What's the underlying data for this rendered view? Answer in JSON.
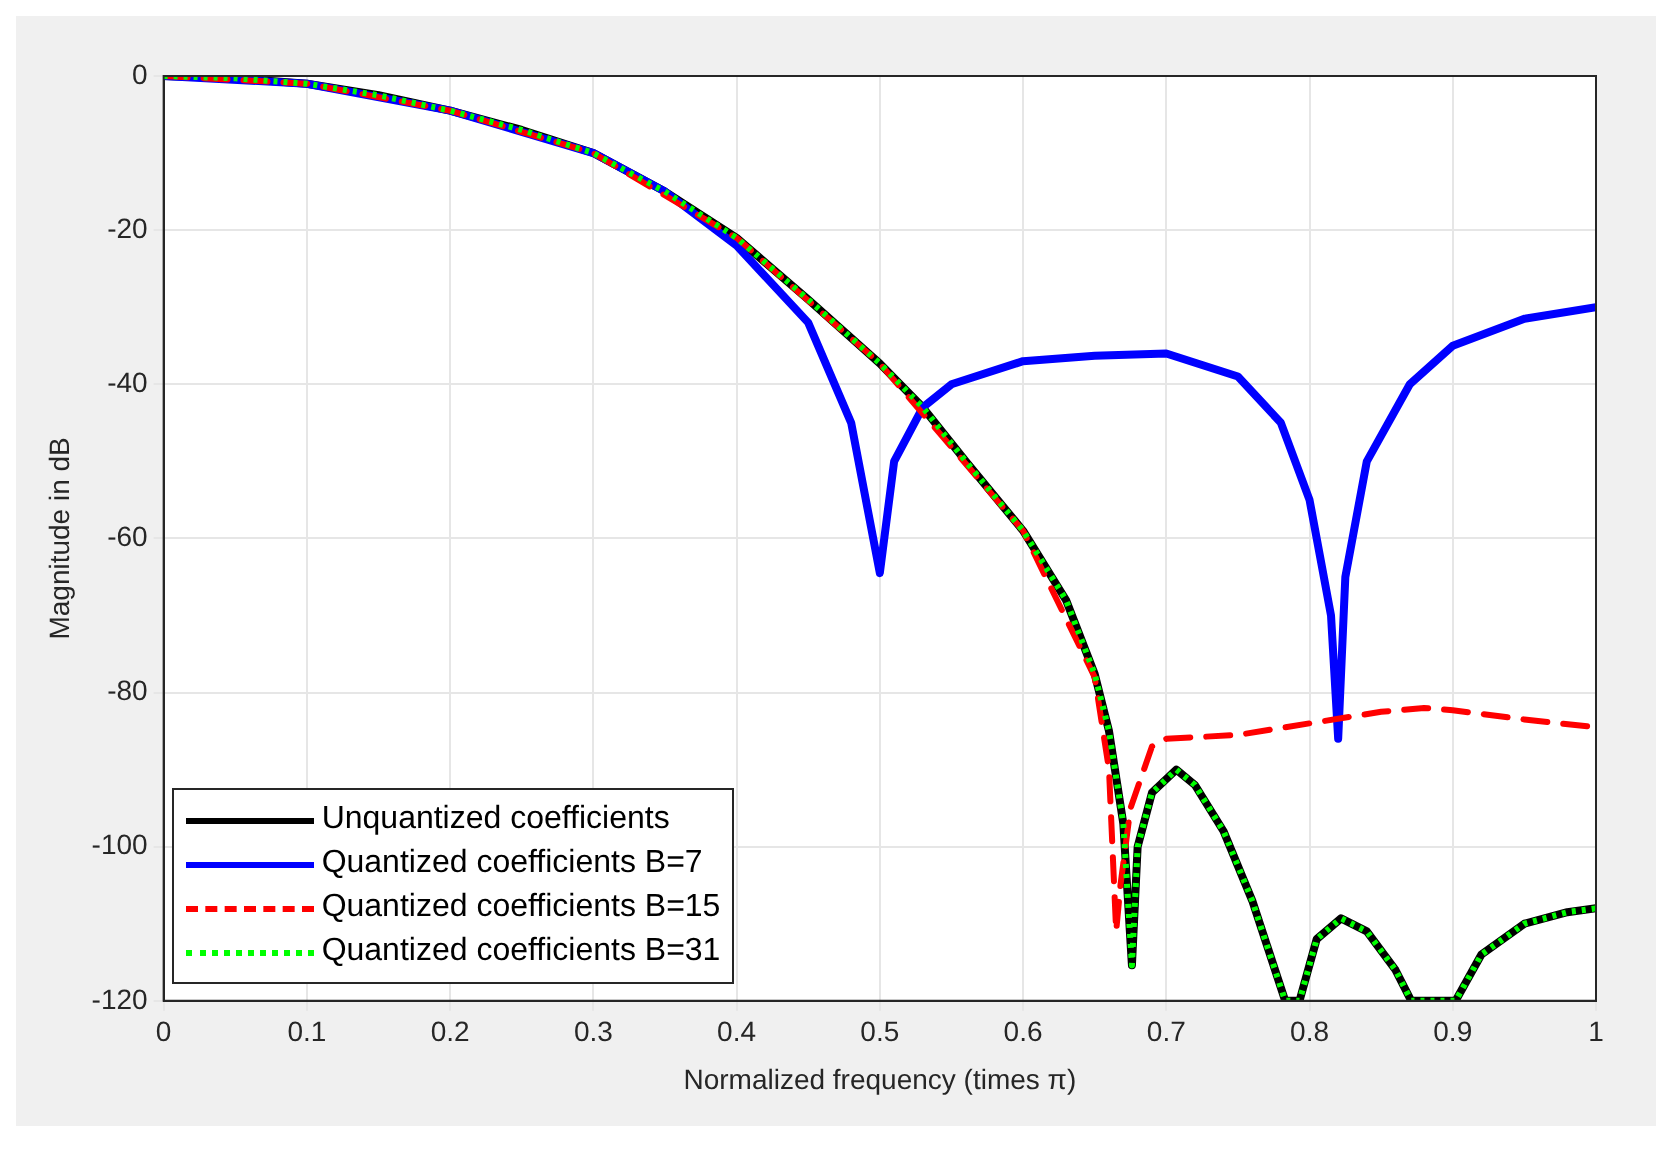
{
  "chart_data": {
    "type": "line",
    "xlabel": "Normalized frequency (times π)",
    "ylabel": "Magnitude in dB",
    "xlim": [
      0,
      1
    ],
    "ylim": [
      -120,
      0
    ],
    "xticks": [
      0,
      0.1,
      0.2,
      0.3,
      0.4,
      0.5,
      0.6,
      0.7,
      0.8,
      0.9,
      1
    ],
    "yticks": [
      -120,
      -100,
      -80,
      -60,
      -40,
      -20,
      0
    ],
    "grid": true,
    "legend": "bottom left",
    "marker": "none",
    "series": [
      {
        "name": "Unquantized coefficients",
        "color": "#000000",
        "line_style": "solid",
        "x": [
          0,
          0.05,
          0.1,
          0.15,
          0.2,
          0.25,
          0.3,
          0.35,
          0.4,
          0.45,
          0.5,
          0.53,
          0.56,
          0.6,
          0.63,
          0.65,
          0.66,
          0.67,
          0.676,
          0.68,
          0.69,
          0.707,
          0.72,
          0.74,
          0.76,
          0.783,
          0.793,
          0.805,
          0.822,
          0.84,
          0.86,
          0.871,
          0.902,
          0.92,
          0.95,
          0.98,
          1
        ],
        "values": [
          0,
          -0.3,
          -1,
          -2.5,
          -4.5,
          -7,
          -10,
          -15,
          -21,
          -29,
          -37.3,
          -43,
          -50,
          -59,
          -68,
          -77.6,
          -85,
          -97,
          -115.4,
          -100,
          -93,
          -90,
          -92,
          -98,
          -107,
          -120,
          -120,
          -112,
          -109.3,
          -111,
          -116,
          -120,
          -120,
          -114,
          -110,
          -108.5,
          -108
        ]
      },
      {
        "name": "Quantized coefficients B=7",
        "color": "#0000ff",
        "line_style": "solid",
        "x": [
          0,
          0.1,
          0.2,
          0.3,
          0.35,
          0.4,
          0.45,
          0.48,
          0.5,
          0.51,
          0.53,
          0.55,
          0.6,
          0.65,
          0.7,
          0.75,
          0.78,
          0.8,
          0.815,
          0.82,
          0.825,
          0.84,
          0.87,
          0.9,
          0.95,
          1
        ],
        "values": [
          0,
          -1,
          -4.5,
          -10,
          -15,
          -22,
          -32,
          -45,
          -64.5,
          -50,
          -43,
          -40,
          -37,
          -36.3,
          -36,
          -39,
          -45,
          -55,
          -70,
          -86,
          -65,
          -50,
          -40,
          -35,
          -31.5,
          -30
        ]
      },
      {
        "name": "Quantized coefficients B=15",
        "color": "#ff0000",
        "line_style": "dashed",
        "x": [
          0,
          0.1,
          0.2,
          0.3,
          0.4,
          0.5,
          0.6,
          0.65,
          0.66,
          0.665,
          0.668,
          0.675,
          0.69,
          0.7,
          0.75,
          0.8,
          0.85,
          0.88,
          0.9,
          0.95,
          1
        ],
        "values": [
          0,
          -1,
          -4.5,
          -10,
          -21,
          -37.3,
          -59,
          -78,
          -90,
          -111,
          -105,
          -95,
          -87,
          -86,
          -85.5,
          -84,
          -82.5,
          -82,
          -82.3,
          -83.5,
          -84.5
        ]
      },
      {
        "name": "Quantized coefficients B=31",
        "color": "#00ff00",
        "line_style": "dotted",
        "x": [
          0,
          0.05,
          0.1,
          0.15,
          0.2,
          0.25,
          0.3,
          0.35,
          0.4,
          0.45,
          0.5,
          0.53,
          0.56,
          0.6,
          0.63,
          0.65,
          0.66,
          0.67,
          0.676,
          0.68,
          0.69,
          0.707,
          0.72,
          0.74,
          0.76,
          0.783,
          0.793,
          0.805,
          0.822,
          0.84,
          0.86,
          0.871,
          0.902,
          0.92,
          0.95,
          0.98,
          1
        ],
        "values": [
          0,
          -0.3,
          -1,
          -2.5,
          -4.5,
          -7,
          -10,
          -15,
          -21,
          -29,
          -37.3,
          -43,
          -50,
          -59,
          -68,
          -77.6,
          -85,
          -97,
          -115.4,
          -100,
          -93,
          -90,
          -92,
          -98,
          -107,
          -120,
          -120,
          -112,
          -109.3,
          -111,
          -116,
          -120,
          -120,
          -114,
          -110,
          -108.5,
          -108
        ]
      }
    ]
  }
}
